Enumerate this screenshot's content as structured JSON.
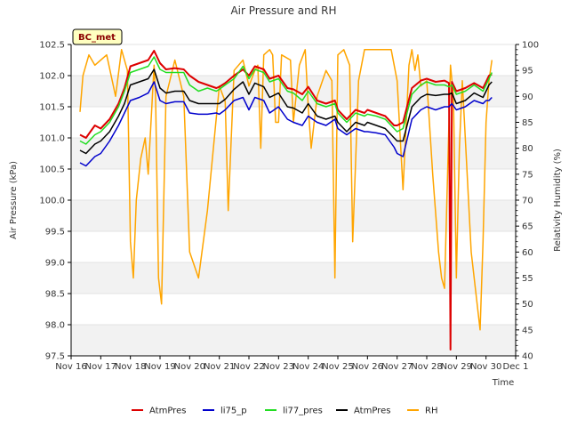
{
  "chart_data": {
    "type": "line",
    "title": "Air Pressure and RH",
    "badge": "BC_met",
    "xlabel": "Time",
    "ylabel": "Air Pressure (kPa)",
    "y2label": "Relativity Humidity (%)",
    "xlim": [
      16,
      31
    ],
    "ylim": [
      97.5,
      102.5
    ],
    "y2lim": [
      40,
      100
    ],
    "x_ticks": [
      {
        "v": 16,
        "label": "Nov 16"
      },
      {
        "v": 17,
        "label": "Nov 17"
      },
      {
        "v": 18,
        "label": "Nov 18"
      },
      {
        "v": 19,
        "label": "Nov 19"
      },
      {
        "v": 20,
        "label": "Nov 20"
      },
      {
        "v": 21,
        "label": "Nov 21"
      },
      {
        "v": 22,
        "label": "Nov 22"
      },
      {
        "v": 23,
        "label": "Nov 23"
      },
      {
        "v": 24,
        "label": "Nov 24"
      },
      {
        "v": 25,
        "label": "Nov 25"
      },
      {
        "v": 26,
        "label": "Nov 26"
      },
      {
        "v": 27,
        "label": "Nov 27"
      },
      {
        "v": 28,
        "label": "Nov 28"
      },
      {
        "v": 29,
        "label": "Nov 29"
      },
      {
        "v": 30,
        "label": "Nov 30"
      },
      {
        "v": 31,
        "label": "Dec 1"
      }
    ],
    "y_ticks": [
      {
        "v": 97.5,
        "label": "97.5"
      },
      {
        "v": 98.0,
        "label": "98.0"
      },
      {
        "v": 98.5,
        "label": "98.5"
      },
      {
        "v": 99.0,
        "label": "99.0"
      },
      {
        "v": 99.5,
        "label": "99.5"
      },
      {
        "v": 100.0,
        "label": "100.0"
      },
      {
        "v": 100.5,
        "label": "100.5"
      },
      {
        "v": 101.0,
        "label": "101.0"
      },
      {
        "v": 101.5,
        "label": "101.5"
      },
      {
        "v": 102.0,
        "label": "102.0"
      },
      {
        "v": 102.5,
        "label": "102.5"
      }
    ],
    "y2_ticks": [
      {
        "v": 40,
        "label": "40"
      },
      {
        "v": 45,
        "label": "45"
      },
      {
        "v": 50,
        "label": "50"
      },
      {
        "v": 55,
        "label": "55"
      },
      {
        "v": 60,
        "label": "60"
      },
      {
        "v": 65,
        "label": "65"
      },
      {
        "v": 70,
        "label": "70"
      },
      {
        "v": 75,
        "label": "75"
      },
      {
        "v": 80,
        "label": "80"
      },
      {
        "v": 85,
        "label": "85"
      },
      {
        "v": 90,
        "label": "90"
      },
      {
        "v": 95,
        "label": "95"
      },
      {
        "v": 100,
        "label": "100"
      }
    ],
    "grid": true,
    "legend_position": "bottom",
    "series": [
      {
        "name": "AtmPres",
        "color": "#dd0000",
        "axis": "left",
        "x": [
          16.3,
          16.5,
          16.8,
          17.0,
          17.3,
          17.6,
          17.8,
          18.0,
          18.3,
          18.6,
          18.8,
          19.0,
          19.2,
          19.5,
          19.8,
          20.0,
          20.3,
          20.6,
          20.9,
          21.0,
          21.2,
          21.5,
          21.8,
          22.0,
          22.2,
          22.5,
          22.7,
          23.0,
          23.3,
          23.5,
          23.8,
          24.0,
          24.3,
          24.6,
          24.9,
          25.0,
          25.3,
          25.6,
          25.9,
          26.0,
          26.3,
          26.6,
          26.9,
          27.0,
          27.2,
          27.5,
          27.8,
          28.0,
          28.3,
          28.6,
          28.75,
          28.8,
          28.85,
          29.0,
          29.3,
          29.6,
          29.9,
          30.0,
          30.1,
          30.2
        ],
        "values": [
          101.05,
          101.0,
          101.2,
          101.15,
          101.3,
          101.55,
          101.8,
          102.15,
          102.2,
          102.25,
          102.4,
          102.2,
          102.1,
          102.12,
          102.1,
          102.0,
          101.9,
          101.85,
          101.8,
          101.82,
          101.88,
          102.0,
          102.1,
          102.0,
          102.15,
          102.1,
          101.95,
          102.0,
          101.8,
          101.78,
          101.7,
          101.82,
          101.6,
          101.55,
          101.6,
          101.45,
          101.3,
          101.45,
          101.4,
          101.45,
          101.4,
          101.35,
          101.2,
          101.2,
          101.25,
          101.8,
          101.92,
          101.95,
          101.9,
          101.92,
          101.88,
          97.6,
          101.9,
          101.75,
          101.8,
          101.88,
          101.8,
          101.9,
          102.0,
          102.02
        ]
      },
      {
        "name": "li75_p",
        "color": "#0000cc",
        "axis": "left",
        "x": [
          16.3,
          16.5,
          16.8,
          17.0,
          17.3,
          17.6,
          17.8,
          18.0,
          18.3,
          18.6,
          18.8,
          19.0,
          19.2,
          19.5,
          19.8,
          20.0,
          20.3,
          20.6,
          20.9,
          21.0,
          21.2,
          21.5,
          21.8,
          22.0,
          22.2,
          22.5,
          22.7,
          23.0,
          23.3,
          23.5,
          23.8,
          24.0,
          24.3,
          24.6,
          24.9,
          25.0,
          25.3,
          25.6,
          25.9,
          26.0,
          26.3,
          26.6,
          26.9,
          27.0,
          27.2,
          27.5,
          27.8,
          28.0,
          28.3,
          28.6,
          28.75,
          28.85,
          29.0,
          29.3,
          29.6,
          29.9,
          30.0,
          30.1,
          30.2
        ],
        "values": [
          100.6,
          100.55,
          100.7,
          100.75,
          100.95,
          101.2,
          101.4,
          101.6,
          101.65,
          101.72,
          101.9,
          101.6,
          101.55,
          101.58,
          101.58,
          101.4,
          101.38,
          101.38,
          101.4,
          101.38,
          101.45,
          101.6,
          101.65,
          101.45,
          101.65,
          101.6,
          101.4,
          101.5,
          101.3,
          101.25,
          101.2,
          101.35,
          101.25,
          101.2,
          101.3,
          101.15,
          101.05,
          101.15,
          101.1,
          101.1,
          101.08,
          101.05,
          100.85,
          100.75,
          100.7,
          101.3,
          101.45,
          101.5,
          101.45,
          101.5,
          101.5,
          101.55,
          101.45,
          101.5,
          101.6,
          101.55,
          101.6,
          101.6,
          101.65
        ]
      },
      {
        "name": "li77_pres",
        "color": "#22dd22",
        "axis": "left",
        "x": [
          16.3,
          16.5,
          16.8,
          17.0,
          17.3,
          17.6,
          17.8,
          18.0,
          18.3,
          18.6,
          18.8,
          19.0,
          19.2,
          19.5,
          19.8,
          20.0,
          20.3,
          20.6,
          20.9,
          21.0,
          21.2,
          21.5,
          21.8,
          22.0,
          22.2,
          22.5,
          22.7,
          23.0,
          23.3,
          23.5,
          23.8,
          24.0,
          24.3,
          24.6,
          24.9,
          25.0,
          25.3,
          25.6,
          25.9,
          26.0,
          26.3,
          26.6,
          26.9,
          27.0,
          27.2,
          27.5,
          27.8,
          28.0,
          28.3,
          28.6,
          28.75,
          28.85,
          29.0,
          29.3,
          29.6,
          29.9,
          30.0,
          30.1,
          30.2
        ],
        "values": [
          100.95,
          100.9,
          101.05,
          101.1,
          101.25,
          101.5,
          101.75,
          102.05,
          102.1,
          102.15,
          102.3,
          102.1,
          102.05,
          102.05,
          102.05,
          101.85,
          101.75,
          101.8,
          101.75,
          101.78,
          101.85,
          101.95,
          102.15,
          101.95,
          102.1,
          102.05,
          101.9,
          101.95,
          101.75,
          101.72,
          101.6,
          101.75,
          101.55,
          101.5,
          101.55,
          101.4,
          101.25,
          101.4,
          101.35,
          101.38,
          101.35,
          101.3,
          101.15,
          101.1,
          101.15,
          101.7,
          101.85,
          101.9,
          101.85,
          101.85,
          101.82,
          101.85,
          101.7,
          101.75,
          101.85,
          101.75,
          101.85,
          101.95,
          102.05
        ]
      },
      {
        "name": "AtmPres",
        "color": "#000000",
        "axis": "left",
        "x": [
          16.3,
          16.5,
          16.8,
          17.0,
          17.3,
          17.6,
          17.8,
          18.0,
          18.3,
          18.6,
          18.8,
          19.0,
          19.2,
          19.5,
          19.8,
          20.0,
          20.3,
          20.6,
          20.9,
          21.0,
          21.2,
          21.5,
          21.8,
          22.0,
          22.2,
          22.5,
          22.7,
          23.0,
          23.3,
          23.5,
          23.8,
          24.0,
          24.3,
          24.6,
          24.9,
          25.0,
          25.3,
          25.6,
          25.9,
          26.0,
          26.3,
          26.6,
          26.9,
          27.0,
          27.2,
          27.5,
          27.8,
          28.0,
          28.3,
          28.6,
          28.75,
          28.85,
          29.0,
          29.3,
          29.6,
          29.9,
          30.0,
          30.1,
          30.2
        ],
        "values": [
          100.8,
          100.75,
          100.9,
          100.95,
          101.1,
          101.35,
          101.55,
          101.85,
          101.9,
          101.95,
          102.1,
          101.8,
          101.72,
          101.75,
          101.75,
          101.6,
          101.55,
          101.55,
          101.55,
          101.55,
          101.62,
          101.78,
          101.9,
          101.7,
          101.88,
          101.82,
          101.65,
          101.72,
          101.5,
          101.48,
          101.4,
          101.55,
          101.35,
          101.3,
          101.35,
          101.25,
          101.1,
          101.25,
          101.2,
          101.25,
          101.2,
          101.15,
          101.0,
          100.95,
          100.95,
          101.5,
          101.65,
          101.7,
          101.68,
          101.7,
          101.7,
          101.72,
          101.55,
          101.6,
          101.72,
          101.65,
          101.75,
          101.85,
          101.9
        ]
      },
      {
        "name": "RH",
        "color": "#ffa500",
        "axis": "right",
        "x": [
          16.3,
          16.4,
          16.6,
          16.8,
          17.0,
          17.2,
          17.5,
          17.7,
          17.9,
          18.0,
          18.1,
          18.2,
          18.35,
          18.5,
          18.6,
          18.8,
          18.85,
          18.95,
          19.05,
          19.2,
          19.5,
          19.8,
          20.0,
          20.3,
          20.6,
          20.8,
          21.0,
          21.2,
          21.3,
          21.5,
          21.8,
          22.0,
          22.2,
          22.3,
          22.4,
          22.5,
          22.7,
          22.8,
          22.9,
          23.0,
          23.1,
          23.4,
          23.5,
          23.7,
          23.9,
          24.0,
          24.1,
          24.3,
          24.6,
          24.8,
          24.9,
          25.0,
          25.2,
          25.4,
          25.5,
          25.7,
          25.9,
          26.0,
          26.2,
          26.3,
          26.5,
          26.8,
          27.0,
          27.2,
          27.4,
          27.5,
          27.6,
          27.7,
          27.8,
          28.0,
          28.2,
          28.4,
          28.5,
          28.6,
          28.8,
          28.9,
          29.0,
          29.1,
          29.2,
          29.5,
          29.8,
          29.9,
          30.0,
          30.1,
          30.2
        ],
        "values": [
          87,
          94,
          98,
          96,
          97,
          98,
          90,
          99,
          95,
          62,
          55,
          70,
          78,
          82,
          75,
          96,
          90,
          55,
          50,
          90,
          97,
          90,
          60,
          55,
          68,
          80,
          92,
          89,
          68,
          95,
          97,
          92,
          95,
          96,
          80,
          98,
          99,
          98,
          85,
          85,
          98,
          97,
          85,
          96,
          99,
          88,
          80,
          90,
          95,
          93,
          55,
          98,
          99,
          96,
          62,
          93,
          99,
          99,
          99,
          99,
          99,
          99,
          93,
          72,
          96,
          99,
          95,
          98,
          92,
          93,
          75,
          60,
          55,
          53,
          96,
          90,
          55,
          80,
          93,
          60,
          45,
          62,
          85,
          93,
          97
        ]
      }
    ]
  }
}
